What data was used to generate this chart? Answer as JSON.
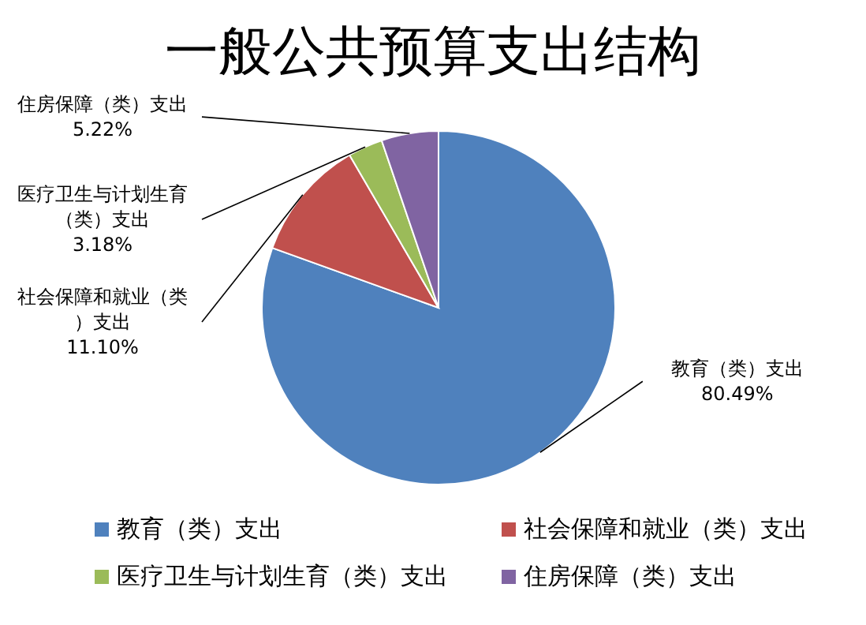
{
  "chart_data": {
    "type": "pie",
    "title": "一般公共预算支出结构",
    "categories": [
      "教育（类）支出",
      "社会保障和就业（类）支出",
      "医疗卫生与计划生育（类）支出",
      "住房保障（类）支出"
    ],
    "values": [
      80.49,
      11.1,
      3.18,
      5.22
    ],
    "value_labels": [
      "80.49%",
      "11.10%",
      "3.18%",
      "5.22%"
    ],
    "colors": [
      "#4f81bd",
      "#c0504d",
      "#9bbb59",
      "#8064a2"
    ],
    "legend": "bottom"
  }
}
